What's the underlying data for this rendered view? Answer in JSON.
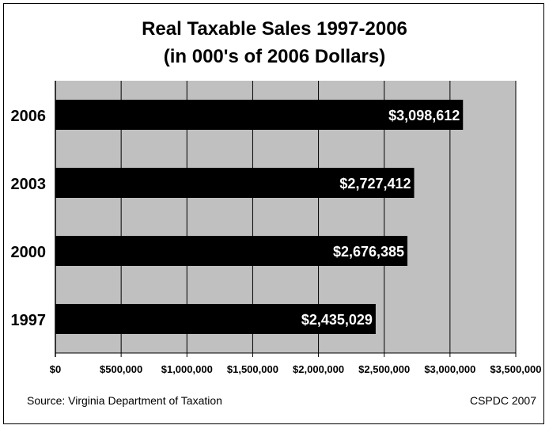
{
  "chart_data": {
    "type": "bar",
    "orientation": "horizontal",
    "title": "Real Taxable Sales 1997-2006",
    "subtitle": "(in 000's of 2006 Dollars)",
    "categories": [
      "2006",
      "2003",
      "2000",
      "1997"
    ],
    "values": [
      3098612,
      2727412,
      2676385,
      2435029
    ],
    "data_labels": [
      "$3,098,612",
      "$2,727,412",
      "$2,676,385",
      "$2,435,029"
    ],
    "xlim": [
      0,
      3500000
    ],
    "x_ticks": [
      0,
      500000,
      1000000,
      1500000,
      2000000,
      2500000,
      3000000,
      3500000
    ],
    "x_tick_labels": [
      "$0",
      "$500,000",
      "$1,000,000",
      "$1,500,000",
      "$2,000,000",
      "$2,500,000",
      "$3,000,000",
      "$3,500,000"
    ],
    "grid": true,
    "legend": "none",
    "colors": {
      "bar": "#000000",
      "plot_bg": "#c0c0c0",
      "label_text": "#ffffff"
    }
  },
  "footer": {
    "source": "Source: Virginia Department of Taxation",
    "credit": "CSPDC 2007"
  }
}
